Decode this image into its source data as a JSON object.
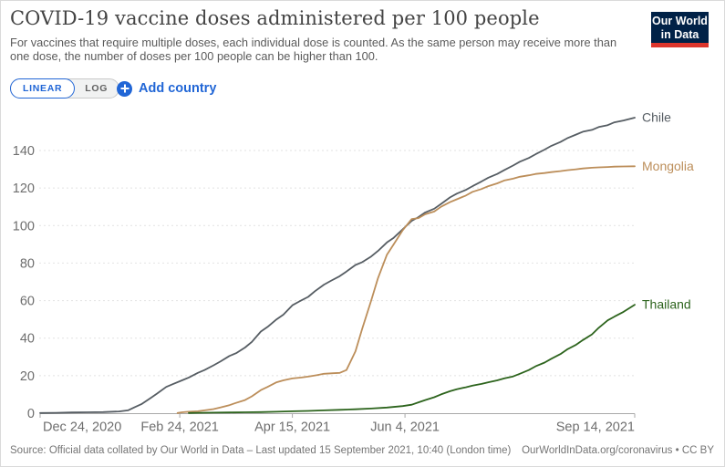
{
  "header": {
    "title": "COVID-19 vaccine doses administered per 100 people",
    "subtitle_lines": [
      "For vaccines that require multiple doses, each individual dose is counted. As the same person may receive more than",
      "one dose, the number of doses per 100 people can be higher than 100."
    ],
    "logo": {
      "line1": "Our World",
      "line2": "in Data"
    }
  },
  "controls": {
    "scale_toggle": {
      "options": [
        "LINEAR",
        "LOG"
      ],
      "selected": "LINEAR"
    },
    "add_country_label": "Add country"
  },
  "footer": {
    "source": "Source: Official data collated by Our World in Data – Last updated 15 September 2021, 10:40 (London time)",
    "attribution": "OurWorldInData.org/coronavirus • CC BY"
  },
  "colors": {
    "chile": "#565d63",
    "mongolia": "#bc8e5a",
    "thailand": "#2d641d",
    "accent_blue": "#2166d6",
    "logo_navy": "#002147",
    "logo_red": "#dc352c",
    "gridline": "#e2e2e2",
    "axis": "#a8a8a8",
    "axis_text": "#6e6e6e"
  },
  "chart_data": {
    "type": "line",
    "title": "COVID-19 vaccine doses administered per 100 people",
    "xlabel": "",
    "ylabel": "",
    "legend_position": "line-end-labels",
    "x_axis": {
      "domain_days": 264,
      "tick_days": [
        0,
        62,
        112,
        162,
        264
      ],
      "tick_labels": [
        "Dec 24, 2020",
        "Feb 24, 2021",
        "Apr 15, 2021",
        "Jun 4, 2021",
        "Sep 14, 2021"
      ]
    },
    "y_axis": {
      "ticks": [
        0,
        20,
        40,
        60,
        80,
        100,
        120,
        140
      ],
      "ylim": [
        0,
        140
      ],
      "grid": "dashed"
    },
    "series": [
      {
        "name": "Chile",
        "color": "#565d63",
        "end_value": 157.5,
        "points": [
          [
            0,
            0.1
          ],
          [
            7,
            0.2
          ],
          [
            14,
            0.4
          ],
          [
            21,
            0.5
          ],
          [
            28,
            0.6
          ],
          [
            35,
            0.9
          ],
          [
            39,
            1.5
          ],
          [
            42,
            3.2
          ],
          [
            45,
            4.8
          ],
          [
            49,
            8
          ],
          [
            52,
            10.5
          ],
          [
            56,
            14
          ],
          [
            59,
            15.5
          ],
          [
            63,
            17.5
          ],
          [
            66,
            19
          ],
          [
            70,
            21.5
          ],
          [
            73,
            23
          ],
          [
            77,
            25.5
          ],
          [
            80,
            27.5
          ],
          [
            84,
            30.5
          ],
          [
            87,
            32
          ],
          [
            91,
            35
          ],
          [
            94,
            38
          ],
          [
            98,
            43.5
          ],
          [
            101,
            46
          ],
          [
            105,
            50
          ],
          [
            108,
            52.5
          ],
          [
            112,
            57.5
          ],
          [
            115,
            59.5
          ],
          [
            119,
            62
          ],
          [
            122,
            65
          ],
          [
            126,
            68.5
          ],
          [
            129,
            70.5
          ],
          [
            133,
            73
          ],
          [
            136,
            75.5
          ],
          [
            140,
            79
          ],
          [
            143,
            80.5
          ],
          [
            147,
            83.5
          ],
          [
            150,
            86.5
          ],
          [
            154,
            91
          ],
          [
            157,
            93.5
          ],
          [
            161,
            98
          ],
          [
            165,
            102.5
          ],
          [
            168,
            104.5
          ],
          [
            171,
            107
          ],
          [
            175,
            109
          ],
          [
            178,
            111.5
          ],
          [
            182,
            115
          ],
          [
            185,
            117
          ],
          [
            189,
            119
          ],
          [
            192,
            121
          ],
          [
            196,
            123.5
          ],
          [
            199,
            125.5
          ],
          [
            203,
            127.5
          ],
          [
            206,
            129.5
          ],
          [
            210,
            132
          ],
          [
            213,
            134
          ],
          [
            217,
            136
          ],
          [
            220,
            138
          ],
          [
            224,
            140.5
          ],
          [
            227,
            142.5
          ],
          [
            231,
            144.5
          ],
          [
            234,
            146.5
          ],
          [
            238,
            148.5
          ],
          [
            241,
            150
          ],
          [
            245,
            151
          ],
          [
            248,
            152.5
          ],
          [
            252,
            153.5
          ],
          [
            255,
            155
          ],
          [
            259,
            156
          ],
          [
            264,
            157.5
          ]
        ]
      },
      {
        "name": "Mongolia",
        "color": "#bc8e5a",
        "end_value": 131.6,
        "points": [
          [
            61,
            0.1
          ],
          [
            63,
            0.5
          ],
          [
            66,
            0.8
          ],
          [
            70,
            1.0
          ],
          [
            73,
            1.5
          ],
          [
            77,
            2.2
          ],
          [
            80,
            3.0
          ],
          [
            84,
            4.3
          ],
          [
            87,
            5.5
          ],
          [
            91,
            7
          ],
          [
            94,
            9
          ],
          [
            98,
            12.3
          ],
          [
            101,
            14
          ],
          [
            105,
            16.5
          ],
          [
            108,
            17.5
          ],
          [
            112,
            18.5
          ],
          [
            116,
            19
          ],
          [
            119,
            19.5
          ],
          [
            123,
            20.3
          ],
          [
            126,
            21
          ],
          [
            130,
            21.3
          ],
          [
            133,
            21.5
          ],
          [
            136,
            23
          ],
          [
            140,
            33
          ],
          [
            143,
            45
          ],
          [
            147,
            60
          ],
          [
            150,
            72
          ],
          [
            154,
            84.5
          ],
          [
            157,
            90
          ],
          [
            161,
            97.5
          ],
          [
            165,
            103.5
          ],
          [
            168,
            104
          ],
          [
            171,
            106
          ],
          [
            175,
            107.5
          ],
          [
            178,
            110
          ],
          [
            182,
            112.5
          ],
          [
            185,
            114
          ],
          [
            189,
            116
          ],
          [
            192,
            118
          ],
          [
            196,
            119.5
          ],
          [
            199,
            121
          ],
          [
            203,
            122.5
          ],
          [
            206,
            124
          ],
          [
            210,
            125
          ],
          [
            213,
            126
          ],
          [
            217,
            126.8
          ],
          [
            220,
            127.5
          ],
          [
            224,
            128
          ],
          [
            227,
            128.5
          ],
          [
            231,
            129
          ],
          [
            234,
            129.5
          ],
          [
            238,
            130
          ],
          [
            241,
            130.4
          ],
          [
            245,
            130.8
          ],
          [
            248,
            131
          ],
          [
            252,
            131.2
          ],
          [
            255,
            131.4
          ],
          [
            259,
            131.5
          ],
          [
            264,
            131.6
          ]
        ]
      },
      {
        "name": "Thailand",
        "color": "#2d641d",
        "end_value": 57.8,
        "points": [
          [
            66,
            0.1
          ],
          [
            70,
            0.2
          ],
          [
            77,
            0.3
          ],
          [
            84,
            0.4
          ],
          [
            91,
            0.5
          ],
          [
            98,
            0.6
          ],
          [
            105,
            0.8
          ],
          [
            112,
            1.0
          ],
          [
            119,
            1.2
          ],
          [
            126,
            1.5
          ],
          [
            133,
            1.8
          ],
          [
            140,
            2.1
          ],
          [
            147,
            2.5
          ],
          [
            154,
            3.0
          ],
          [
            161,
            3.8
          ],
          [
            165,
            4.5
          ],
          [
            168,
            5.8
          ],
          [
            171,
            7
          ],
          [
            175,
            8.5
          ],
          [
            178,
            10
          ],
          [
            182,
            11.7
          ],
          [
            185,
            12.8
          ],
          [
            189,
            13.8
          ],
          [
            192,
            14.7
          ],
          [
            196,
            15.6
          ],
          [
            199,
            16.5
          ],
          [
            203,
            17.5
          ],
          [
            206,
            18.5
          ],
          [
            210,
            19.6
          ],
          [
            213,
            21
          ],
          [
            217,
            23
          ],
          [
            220,
            25
          ],
          [
            224,
            27
          ],
          [
            227,
            29
          ],
          [
            231,
            31.5
          ],
          [
            234,
            34
          ],
          [
            238,
            36.5
          ],
          [
            241,
            39
          ],
          [
            245,
            42
          ],
          [
            248,
            45.5
          ],
          [
            252,
            49.5
          ],
          [
            255,
            51.5
          ],
          [
            259,
            54
          ],
          [
            264,
            57.8
          ]
        ]
      }
    ]
  }
}
